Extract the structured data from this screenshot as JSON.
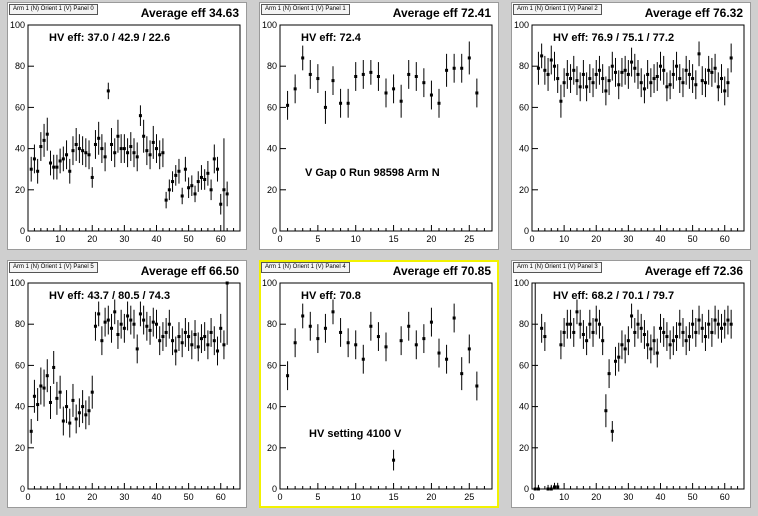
{
  "panels": [
    {
      "title": "Arm 1 (N) Orient 1 (V) Panel 0",
      "stat": "Average eff 34.63",
      "hv": "HV eff:   37.0 / 42.9 / 22.6",
      "annotation": "",
      "selected": false,
      "chart_data": {
        "type": "scatter",
        "xlim": [
          0,
          66
        ],
        "ylim": [
          0,
          100
        ],
        "xticks": [
          0,
          10,
          20,
          30,
          40,
          50,
          60
        ],
        "yticks": [
          0,
          20,
          40,
          60,
          80,
          100
        ],
        "x": [
          1,
          2,
          3,
          4,
          5,
          6,
          7,
          8,
          9,
          10,
          11,
          12,
          13,
          14,
          15,
          16,
          17,
          18,
          19,
          20,
          21,
          22,
          23,
          24,
          25,
          26,
          27,
          28,
          29,
          30,
          31,
          32,
          33,
          34,
          35,
          36,
          37,
          38,
          39,
          40,
          41,
          42,
          43,
          44,
          45,
          46,
          47,
          48,
          49,
          50,
          51,
          52,
          53,
          54,
          55,
          56,
          57,
          58,
          59,
          60,
          61,
          62
        ],
        "y": [
          30,
          35,
          29,
          41,
          44,
          47,
          33,
          31,
          31,
          34,
          35,
          37,
          29,
          39,
          42,
          40,
          39,
          38,
          37,
          26,
          42,
          45,
          40,
          36,
          68,
          42,
          38,
          46,
          40,
          40,
          38,
          41,
          38,
          36,
          56,
          46,
          39,
          37,
          43,
          40,
          37,
          38,
          15,
          20,
          24,
          27,
          29,
          17,
          30,
          21,
          22,
          18,
          24,
          26,
          25,
          28,
          20,
          35,
          30,
          13,
          20,
          18
        ],
        "err": [
          6,
          7,
          6,
          7,
          8,
          8,
          6,
          6,
          6,
          6,
          6,
          7,
          6,
          7,
          8,
          7,
          7,
          7,
          7,
          5,
          7,
          8,
          7,
          7,
          4,
          8,
          7,
          8,
          7,
          7,
          7,
          7,
          7,
          7,
          5,
          8,
          7,
          7,
          8,
          7,
          7,
          7,
          4,
          5,
          5,
          5,
          6,
          4,
          6,
          5,
          5,
          4,
          5,
          6,
          5,
          6,
          5,
          7,
          6,
          5,
          25,
          6
        ]
      }
    },
    {
      "title": "Arm 1 (N) Orient 1 (V) Panel 1",
      "stat": "Average eff 72.41",
      "hv": "HV eff:   72.4",
      "annotation": "V Gap 0 Run 98598 Arm N",
      "selected": false,
      "chart_data": {
        "type": "scatter",
        "xlim": [
          0,
          28
        ],
        "ylim": [
          0,
          100
        ],
        "xticks": [
          0,
          5,
          10,
          15,
          20,
          25
        ],
        "yticks": [
          0,
          20,
          40,
          60,
          80,
          100
        ],
        "x": [
          1,
          2,
          3,
          4,
          5,
          6,
          7,
          8,
          9,
          10,
          11,
          12,
          13,
          14,
          15,
          16,
          17,
          18,
          19,
          20,
          21,
          22,
          23,
          24,
          25,
          26
        ],
        "y": [
          61,
          69,
          84,
          76,
          74,
          60,
          73,
          62,
          62,
          75,
          76,
          77,
          75,
          67,
          69,
          63,
          76,
          75,
          72,
          66,
          62,
          78,
          79,
          79,
          84,
          67
        ],
        "err": [
          7,
          7,
          6,
          7,
          7,
          8,
          7,
          7,
          7,
          7,
          7,
          6,
          7,
          7,
          7,
          8,
          7,
          7,
          7,
          7,
          7,
          8,
          7,
          7,
          8,
          7
        ]
      }
    },
    {
      "title": "Arm 1 (N) Orient 1 (V) Panel 2",
      "stat": "Average eff 76.32",
      "hv": "HV eff:   76.9 / 75.1 / 77.2",
      "annotation": "",
      "selected": false,
      "chart_data": {
        "type": "scatter",
        "xlim": [
          0,
          66
        ],
        "ylim": [
          0,
          100
        ],
        "xticks": [
          0,
          10,
          20,
          30,
          40,
          50,
          60
        ],
        "yticks": [
          0,
          20,
          40,
          60,
          80,
          100
        ],
        "x": [
          2,
          3,
          4,
          5,
          6,
          7,
          8,
          9,
          10,
          11,
          12,
          13,
          14,
          15,
          16,
          17,
          18,
          19,
          20,
          21,
          22,
          23,
          24,
          25,
          26,
          27,
          28,
          29,
          30,
          31,
          32,
          33,
          34,
          35,
          36,
          37,
          38,
          39,
          40,
          41,
          42,
          43,
          44,
          45,
          46,
          47,
          48,
          49,
          50,
          51,
          52,
          53,
          54,
          55,
          56,
          57,
          58,
          59,
          60,
          61,
          62
        ],
        "y": [
          79,
          85,
          78,
          76,
          83,
          80,
          74,
          63,
          72,
          76,
          74,
          78,
          73,
          70,
          76,
          70,
          74,
          72,
          76,
          78,
          74,
          68,
          73,
          80,
          77,
          71,
          77,
          78,
          76,
          82,
          79,
          76,
          72,
          69,
          76,
          72,
          74,
          75,
          80,
          78,
          70,
          71,
          76,
          80,
          74,
          72,
          78,
          76,
          74,
          71,
          86,
          73,
          72,
          78,
          77,
          79,
          70,
          74,
          68,
          72,
          84
        ],
        "err": [
          8,
          6,
          7,
          8,
          7,
          7,
          7,
          8,
          7,
          7,
          7,
          7,
          7,
          7,
          7,
          7,
          7,
          7,
          7,
          7,
          7,
          7,
          7,
          7,
          7,
          7,
          7,
          7,
          7,
          7,
          7,
          7,
          7,
          7,
          7,
          7,
          7,
          7,
          7,
          7,
          7,
          7,
          7,
          7,
          7,
          7,
          7,
          7,
          7,
          7,
          6,
          7,
          7,
          7,
          7,
          7,
          7,
          7,
          7,
          7,
          7
        ]
      }
    },
    {
      "title": "Arm 1 (N) Orient 1 (V) Panel 5",
      "stat": "Average eff 66.50",
      "hv": "HV eff:   43.7 / 80.5 / 74.3",
      "annotation": "",
      "selected": false,
      "chart_data": {
        "type": "scatter",
        "xlim": [
          0,
          66
        ],
        "ylim": [
          0,
          100
        ],
        "xticks": [
          0,
          10,
          20,
          30,
          40,
          50,
          60
        ],
        "yticks": [
          0,
          20,
          40,
          60,
          80,
          100
        ],
        "x": [
          1,
          2,
          3,
          4,
          5,
          6,
          7,
          8,
          9,
          10,
          11,
          12,
          13,
          14,
          15,
          16,
          17,
          18,
          19,
          20,
          21,
          22,
          23,
          24,
          25,
          26,
          27,
          28,
          29,
          30,
          31,
          32,
          33,
          34,
          35,
          36,
          37,
          38,
          39,
          40,
          41,
          42,
          43,
          44,
          45,
          46,
          47,
          48,
          49,
          50,
          51,
          52,
          53,
          54,
          55,
          56,
          57,
          58,
          59,
          60,
          61,
          62
        ],
        "y": [
          28,
          45,
          41,
          50,
          49,
          55,
          42,
          59,
          44,
          47,
          33,
          40,
          32,
          43,
          34,
          37,
          40,
          36,
          38,
          47,
          79,
          85,
          72,
          81,
          82,
          78,
          86,
          75,
          80,
          78,
          84,
          82,
          80,
          68,
          85,
          82,
          79,
          77,
          81,
          80,
          72,
          74,
          76,
          80,
          72,
          67,
          74,
          71,
          76,
          74,
          70,
          75,
          69,
          73,
          74,
          70,
          76,
          72,
          67,
          78,
          70,
          100
        ],
        "err": [
          6,
          8,
          8,
          9,
          9,
          8,
          8,
          8,
          8,
          8,
          7,
          8,
          7,
          8,
          7,
          7,
          8,
          7,
          7,
          8,
          7,
          6,
          7,
          7,
          7,
          7,
          6,
          7,
          7,
          7,
          7,
          7,
          7,
          7,
          6,
          7,
          7,
          7,
          7,
          7,
          7,
          7,
          7,
          7,
          7,
          7,
          7,
          7,
          7,
          7,
          7,
          7,
          7,
          7,
          7,
          7,
          7,
          7,
          7,
          7,
          7,
          30
        ]
      }
    },
    {
      "title": "Arm 1 (N) Orient 1 (V) Panel 4",
      "stat": "Average eff 70.85",
      "hv": "HV eff:   70.8",
      "annotation": "HV setting 4100 V",
      "selected": true,
      "chart_data": {
        "type": "scatter",
        "xlim": [
          0,
          28
        ],
        "ylim": [
          0,
          100
        ],
        "xticks": [
          0,
          5,
          10,
          15,
          20,
          25
        ],
        "yticks": [
          0,
          20,
          40,
          60,
          80,
          100
        ],
        "x": [
          1,
          2,
          3,
          4,
          5,
          6,
          7,
          8,
          9,
          10,
          11,
          12,
          13,
          14,
          15,
          16,
          17,
          18,
          19,
          20,
          21,
          22,
          23,
          24,
          25,
          26
        ],
        "y": [
          55,
          71,
          84,
          79,
          73,
          78,
          86,
          76,
          71,
          70,
          63,
          79,
          74,
          69,
          14,
          72,
          79,
          70,
          73,
          81,
          66,
          63,
          83,
          56,
          68,
          50
        ],
        "err": [
          7,
          7,
          6,
          7,
          7,
          7,
          6,
          7,
          7,
          7,
          7,
          7,
          7,
          7,
          5,
          7,
          7,
          7,
          7,
          7,
          7,
          7,
          7,
          8,
          7,
          7
        ]
      }
    },
    {
      "title": "Arm 1 (N) Orient 1 (V) Panel 3",
      "stat": "Average eff 72.36",
      "hv": "HV eff:   68.2 / 70.1 / 79.7",
      "annotation": "",
      "selected": false,
      "chart_data": {
        "type": "scatter",
        "xlim": [
          0,
          66
        ],
        "ylim": [
          0,
          100
        ],
        "xticks": [
          0,
          10,
          20,
          30,
          40,
          50,
          60
        ],
        "yticks": [
          0,
          20,
          40,
          60,
          80,
          100
        ],
        "x": [
          1,
          2,
          3,
          4,
          5,
          6,
          7,
          8,
          9,
          10,
          11,
          12,
          13,
          14,
          15,
          16,
          17,
          18,
          19,
          20,
          21,
          22,
          23,
          24,
          25,
          26,
          27,
          28,
          29,
          30,
          31,
          32,
          33,
          34,
          35,
          36,
          37,
          38,
          39,
          40,
          41,
          42,
          43,
          44,
          45,
          46,
          47,
          48,
          49,
          50,
          51,
          52,
          53,
          54,
          55,
          56,
          57,
          58,
          59,
          60,
          61,
          62
        ],
        "y": [
          0,
          0,
          78,
          74,
          0,
          0,
          1,
          1,
          70,
          76,
          80,
          80,
          76,
          86,
          80,
          75,
          72,
          80,
          76,
          82,
          80,
          72,
          38,
          56,
          28,
          62,
          64,
          70,
          68,
          72,
          84,
          76,
          80,
          78,
          75,
          70,
          68,
          72,
          66,
          78,
          76,
          74,
          70,
          72,
          74,
          80,
          76,
          72,
          74,
          80,
          76,
          82,
          78,
          74,
          80,
          76,
          82,
          80,
          78,
          80,
          82,
          80
        ],
        "err": [
          100,
          2,
          7,
          7,
          2,
          2,
          2,
          2,
          7,
          7,
          7,
          7,
          7,
          6,
          7,
          7,
          7,
          7,
          7,
          7,
          7,
          7,
          8,
          7,
          5,
          7,
          7,
          7,
          7,
          7,
          6,
          7,
          7,
          7,
          7,
          7,
          7,
          7,
          7,
          7,
          7,
          7,
          7,
          7,
          7,
          7,
          7,
          7,
          7,
          7,
          7,
          7,
          7,
          7,
          7,
          7,
          7,
          7,
          7,
          7,
          7,
          7
        ]
      }
    }
  ]
}
